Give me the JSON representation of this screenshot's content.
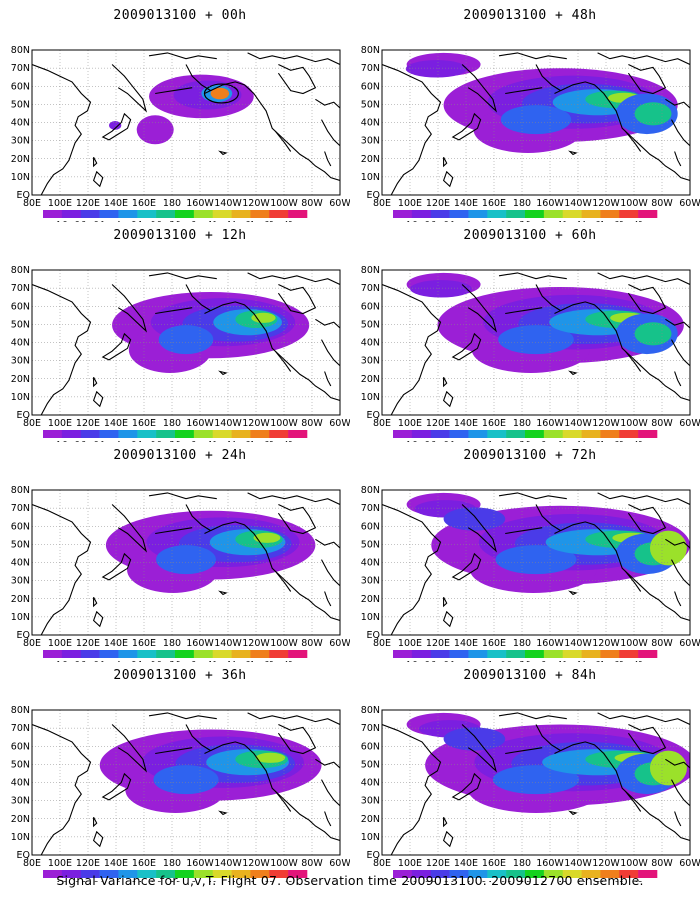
{
  "panels": [
    {
      "title": "2009013100 + 00h",
      "lead": 0
    },
    {
      "title": "2009013100 + 48h",
      "lead": 48
    },
    {
      "title": "2009013100 + 12h",
      "lead": 12
    },
    {
      "title": "2009013100 + 60h",
      "lead": 60
    },
    {
      "title": "2009013100 + 24h",
      "lead": 24
    },
    {
      "title": "2009013100 + 72h",
      "lead": 72
    },
    {
      "title": "2009013100 + 36h",
      "lead": 36
    },
    {
      "title": "2009013100 + 84h",
      "lead": 84
    }
  ],
  "lat_labels": [
    "80N",
    "70N",
    "60N",
    "50N",
    "40N",
    "30N",
    "20N",
    "10N",
    "EQ"
  ],
  "lon_labels": [
    "80E",
    "100E",
    "120E",
    "140E",
    "160E",
    "180",
    "160W",
    "140W",
    "120W",
    "100W",
    "80W",
    "60W"
  ],
  "colorbar": {
    "labels": [
      "1.8",
      "2.2",
      "3.1",
      "4",
      "5.1",
      "6.3",
      "7.5",
      "9",
      "11",
      "14",
      "21",
      "29",
      "40"
    ],
    "colors": [
      "#9b1fd6",
      "#7b1fe0",
      "#4a3be8",
      "#2f63f0",
      "#1f95e8",
      "#19c0c7",
      "#16c28a",
      "#14d21e",
      "#9be12a",
      "#d9d92a",
      "#e8b21f",
      "#ef7f1c",
      "#f03c35",
      "#e3147a"
    ]
  },
  "footer": "Signal Variance for u,v,T. Flight 07. Observation time 2009013100. 2009012700 ensemble."
}
